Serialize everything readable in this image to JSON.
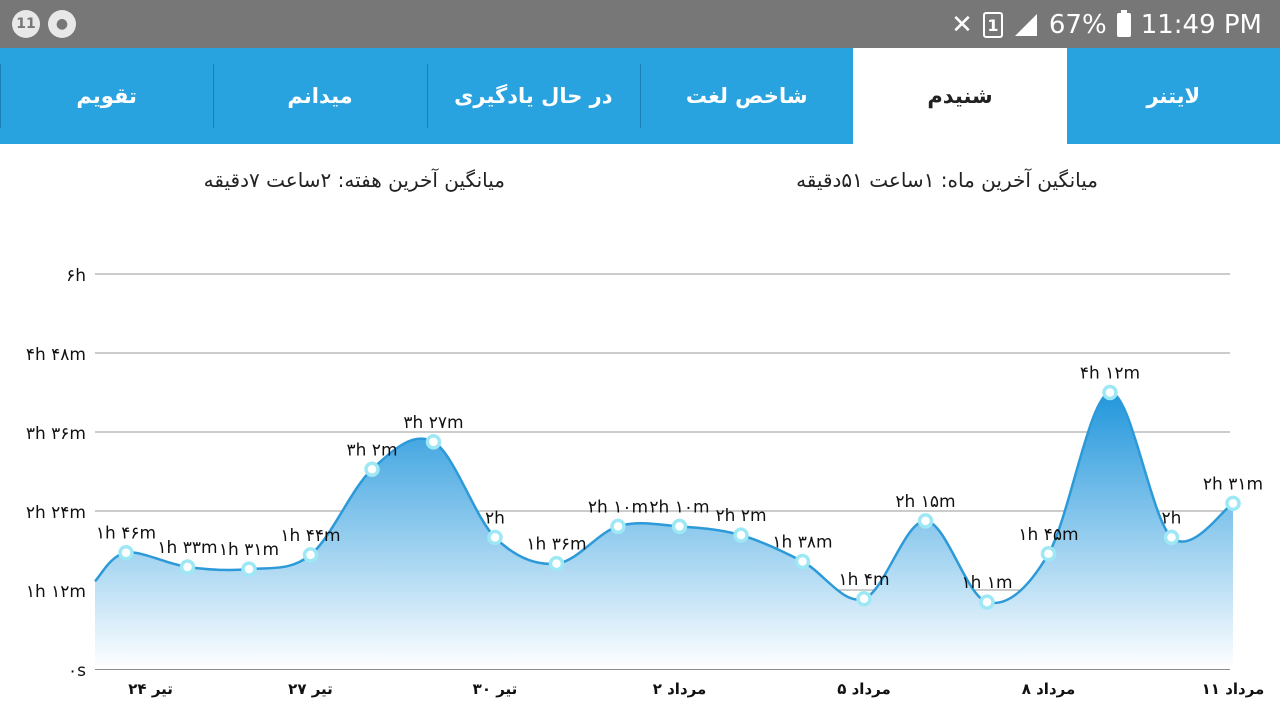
{
  "status_bar": {
    "left_icons": [
      "notification-badge-icon",
      "gauge-icon"
    ],
    "left_badge": "11",
    "battery_percent": "67%",
    "time": "11:49 PM",
    "sim_slot": "1",
    "icons": [
      "mute-icon",
      "sim-icon",
      "signal-icon",
      "battery-icon"
    ]
  },
  "tabs": [
    {
      "label": "لایتنر",
      "active": false
    },
    {
      "label": "شنیدم",
      "active": true
    },
    {
      "label": "شاخص لغت",
      "active": false
    },
    {
      "label": "در حال یادگیری",
      "active": false
    },
    {
      "label": "میدانم",
      "active": false
    },
    {
      "label": "تقویم",
      "active": false
    }
  ],
  "averages": {
    "month": "میانگین آخرین ماه: ۱ساعت  ۵۱دقیقه",
    "week": "میانگین آخرین هفته: ۲ساعت  ۷دقیقه"
  },
  "chart_data": {
    "type": "area",
    "unit": "minutes",
    "y_ticks": [
      {
        "value": 0,
        "label": "۰s"
      },
      {
        "value": 72,
        "label": "۱h ۱۲m"
      },
      {
        "value": 144,
        "label": "۲h ۲۴m"
      },
      {
        "value": 216,
        "label": "۳h ۳۶m"
      },
      {
        "value": 288,
        "label": "۴h ۴۸m"
      },
      {
        "value": 360,
        "label": "۶h"
      }
    ],
    "ylim": [
      0,
      360
    ],
    "points": [
      {
        "date_index": 1,
        "value": 106,
        "label": "۱h ۴۶m"
      },
      {
        "date_index": 2,
        "value": 93,
        "label": "۱h ۳۳m"
      },
      {
        "date_index": 3,
        "value": 91,
        "label": "۱h ۳۱m"
      },
      {
        "date_index": 4,
        "value": 104,
        "label": "۱h ۴۴m"
      },
      {
        "date_index": 5,
        "value": 182,
        "label": "۳h ۲m"
      },
      {
        "date_index": 6,
        "value": 207,
        "label": "۳h ۲۷m"
      },
      {
        "date_index": 7,
        "value": 120,
        "label": "۲h"
      },
      {
        "date_index": 8,
        "value": 96,
        "label": "۱h ۳۶m"
      },
      {
        "date_index": 9,
        "value": 130,
        "label": "۲h ۱۰m"
      },
      {
        "date_index": 10,
        "value": 130,
        "label": "۲h ۱۰m"
      },
      {
        "date_index": 11,
        "value": 122,
        "label": "۲h ۲m"
      },
      {
        "date_index": 12,
        "value": 98,
        "label": "۱h ۳۸m"
      },
      {
        "date_index": 13,
        "value": 64,
        "label": "۱h ۴m"
      },
      {
        "date_index": 14,
        "value": 135,
        "label": "۲h ۱۵m"
      },
      {
        "date_index": 15,
        "value": 61,
        "label": "۱h ۱m"
      },
      {
        "date_index": 16,
        "value": 105,
        "label": "۱h ۴۵m"
      },
      {
        "date_index": 17,
        "value": 252,
        "label": "۴h ۱۲m"
      },
      {
        "date_index": 18,
        "value": 120,
        "label": "۲h"
      },
      {
        "date_index": 19,
        "value": 151,
        "label": "۲h ۳۱m"
      }
    ],
    "start_value": 80,
    "x_ticks": [
      {
        "date_index": 1.4,
        "label": "۲۴ تیر"
      },
      {
        "date_index": 4.0,
        "label": "۲۷ تیر"
      },
      {
        "date_index": 7.0,
        "label": "۳۰ تیر"
      },
      {
        "date_index": 10.0,
        "label": "۲ مرداد"
      },
      {
        "date_index": 13.0,
        "label": "۵ مرداد"
      },
      {
        "date_index": 16.0,
        "label": "۸ مرداد"
      },
      {
        "date_index": 19.0,
        "label": "۱۱ مرداد"
      }
    ],
    "grid": true,
    "colors": {
      "line": "#2c9ad8",
      "fill_top": "#2196dc",
      "fill_bottom": "#ffffff",
      "marker": "#9ee8f5",
      "grid": "#999999"
    }
  }
}
